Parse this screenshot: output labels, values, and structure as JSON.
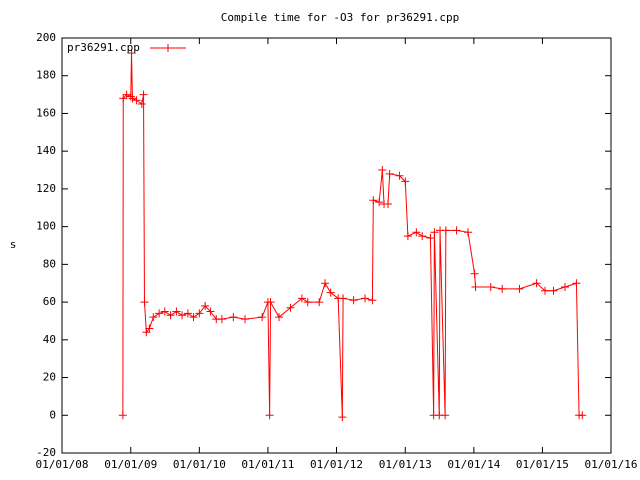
{
  "chart_data": {
    "type": "line",
    "title": "Compile time for -O3 for pr36291.cpp",
    "y_label": "s",
    "legend": "top-left",
    "x": [
      "2008-11-20",
      "2008-11-22",
      "2008-12-10",
      "2009-01-01",
      "2009-01-05",
      "2009-01-10",
      "2009-02-01",
      "2009-03-01",
      "2009-03-10",
      "2009-03-15",
      "2009-03-25",
      "2009-04-10",
      "2009-05-01",
      "2009-06-01",
      "2009-07-01",
      "2009-08-01",
      "2009-09-01",
      "2009-10-01",
      "2009-11-01",
      "2009-12-01",
      "2010-01-01",
      "2010-02-01",
      "2010-03-01",
      "2010-04-01",
      "2010-05-01",
      "2010-07-01",
      "2010-09-01",
      "2010-12-01",
      "2011-01-01",
      "2011-01-10",
      "2011-01-15",
      "2011-03-01",
      "2011-05-01",
      "2011-07-01",
      "2011-08-01",
      "2011-10-01",
      "2011-11-01",
      "2011-12-01",
      "2012-01-10",
      "2012-02-01",
      "2012-02-05",
      "2012-04-01",
      "2012-06-01",
      "2012-07-10",
      "2012-07-15",
      "2012-08-15",
      "2012-09-01",
      "2012-09-10",
      "2012-10-01",
      "2012-10-10",
      "2012-12-01",
      "2013-01-01",
      "2013-01-15",
      "2013-03-01",
      "2013-04-01",
      "2013-05-15",
      "2013-06-01",
      "2013-06-05",
      "2013-07-01",
      "2013-07-05",
      "2013-08-01",
      "2013-08-05",
      "2013-10-01",
      "2013-12-01",
      "2014-01-05",
      "2014-01-10",
      "2014-04-01",
      "2014-06-01",
      "2014-09-01",
      "2014-12-01",
      "2015-01-15",
      "2015-03-01",
      "2015-05-01",
      "2015-07-01",
      "2015-07-15",
      "2015-08-01"
    ],
    "series": [
      {
        "name": "pr36291.cpp",
        "color": "#ff0000",
        "values": [
          0,
          168,
          170,
          169,
          192,
          168,
          167,
          165,
          170,
          60,
          44,
          46,
          52,
          54,
          55,
          53,
          55,
          53,
          54,
          52,
          54,
          58,
          55,
          51,
          51,
          52,
          51,
          52,
          60,
          0,
          60,
          52,
          57,
          62,
          60,
          60,
          70,
          65,
          62,
          -1,
          62,
          61,
          62,
          61,
          114,
          113,
          130,
          112,
          112,
          128,
          127,
          124,
          95,
          97,
          95,
          94,
          0,
          97,
          0,
          98,
          0,
          98,
          98,
          97,
          75,
          68,
          68,
          67,
          67,
          70,
          66,
          66,
          68,
          70,
          0,
          0
        ]
      }
    ],
    "xlim": [
      "2008-01-01",
      "2016-01-01"
    ],
    "xticks": [
      {
        "value": "2008-01-01",
        "label": "01/01/08"
      },
      {
        "value": "2009-01-01",
        "label": "01/01/09"
      },
      {
        "value": "2010-01-01",
        "label": "01/01/10"
      },
      {
        "value": "2011-01-01",
        "label": "01/01/11"
      },
      {
        "value": "2012-01-01",
        "label": "01/01/12"
      },
      {
        "value": "2013-01-01",
        "label": "01/01/13"
      },
      {
        "value": "2014-01-01",
        "label": "01/01/14"
      },
      {
        "value": "2015-01-01",
        "label": "01/01/15"
      },
      {
        "value": "2016-01-01",
        "label": "01/01/16"
      }
    ],
    "ylim": [
      -20,
      200
    ],
    "yticks": [
      -20,
      0,
      20,
      40,
      60,
      80,
      100,
      120,
      140,
      160,
      180,
      200
    ]
  }
}
